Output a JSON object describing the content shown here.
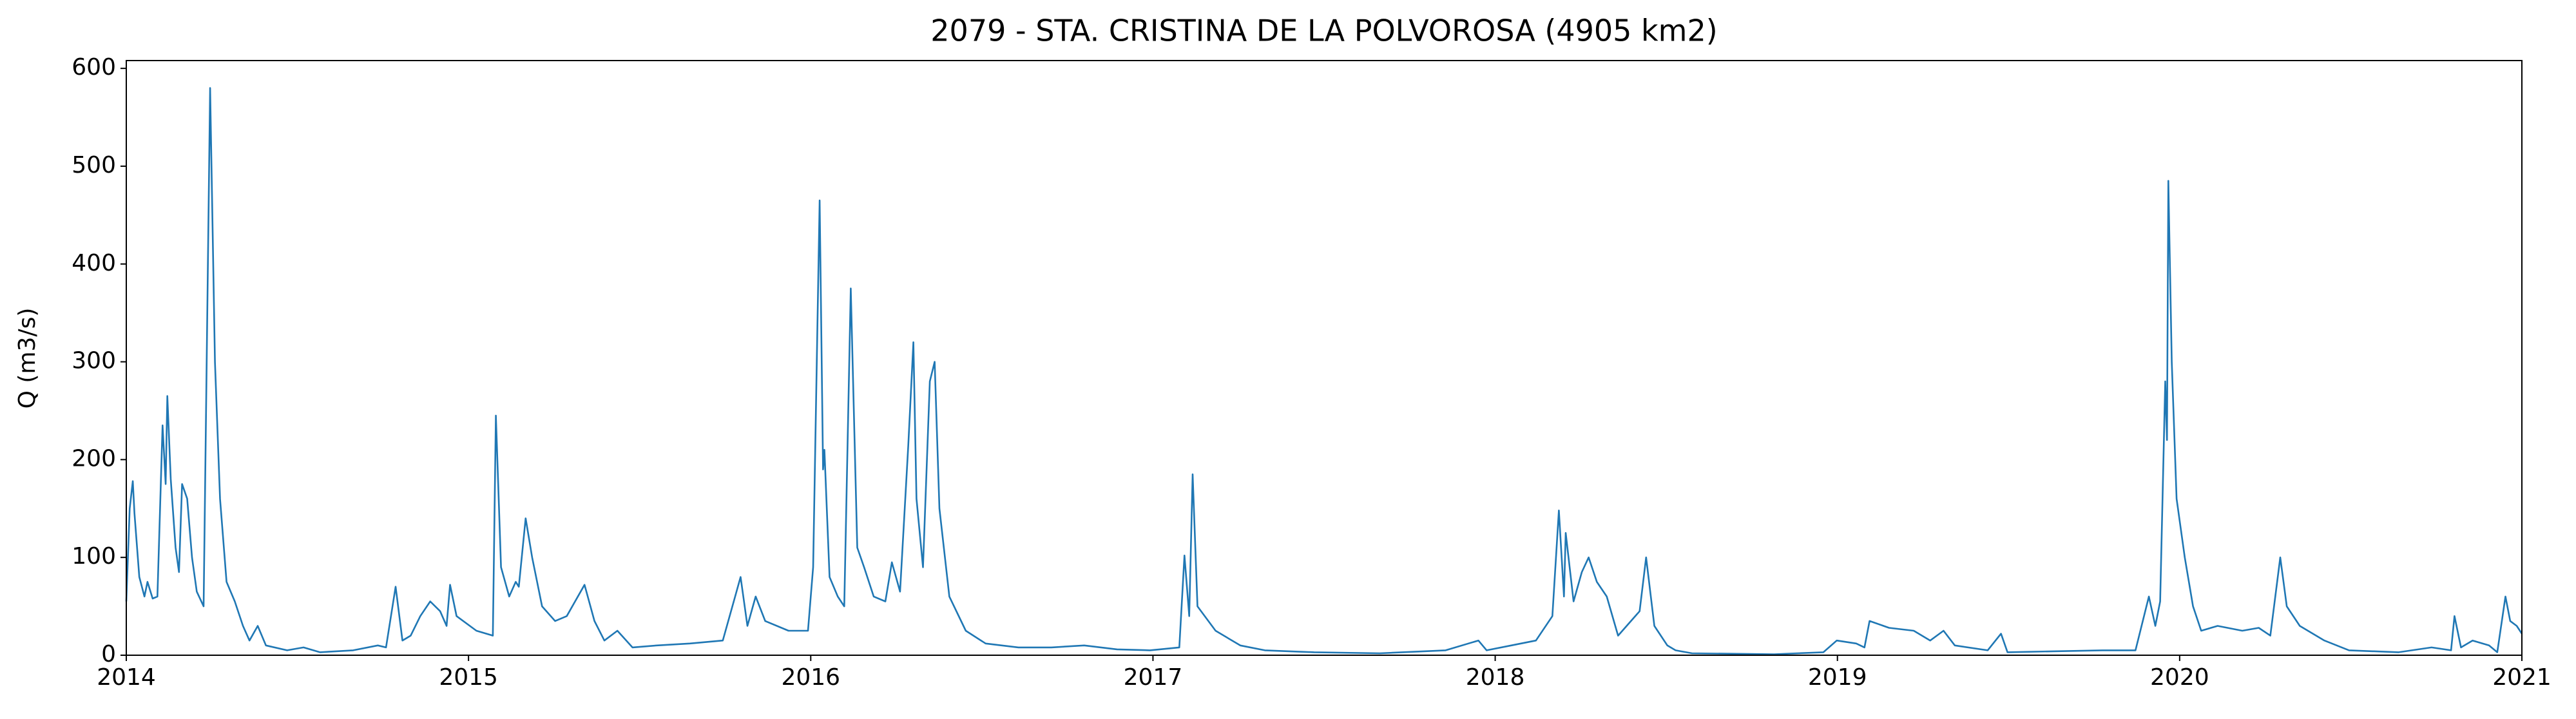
{
  "chart_data": {
    "type": "line",
    "title": "2079 - STA. CRISTINA DE LA POLVOROSA (4905 km2)",
    "y_label": "Q (m3/s)",
    "xlim": [
      2014,
      2021
    ],
    "xticks": [
      2014,
      2015,
      2016,
      2017,
      2018,
      2019,
      2020,
      2021
    ],
    "ylim": [
      0,
      608
    ],
    "yticks": [
      0,
      100,
      200,
      300,
      400,
      500,
      600
    ],
    "series": [
      {
        "color": "#1f77b4",
        "x": [
          2014.0,
          2014.01,
          2014.019,
          2014.024,
          2014.038,
          2014.053,
          2014.062,
          2014.077,
          2014.091,
          2014.106,
          2014.115,
          2014.12,
          2014.13,
          2014.144,
          2014.154,
          2014.163,
          2014.178,
          2014.192,
          2014.206,
          2014.226,
          2014.245,
          2014.259,
          2014.274,
          2014.293,
          2014.317,
          2014.341,
          2014.36,
          2014.384,
          2014.408,
          2014.47,
          2014.518,
          2014.566,
          2014.663,
          2014.735,
          2014.759,
          2014.787,
          2014.807,
          2014.831,
          2014.859,
          2014.888,
          2014.917,
          2014.936,
          2014.946,
          2014.965,
          2015.023,
          2015.071,
          2015.08,
          2015.095,
          2015.119,
          2015.138,
          2015.147,
          2015.167,
          2015.186,
          2015.215,
          2015.253,
          2015.287,
          2015.339,
          2015.368,
          2015.397,
          2015.435,
          2015.479,
          2015.551,
          2015.647,
          2015.743,
          2015.795,
          2015.815,
          2015.839,
          2015.867,
          2015.935,
          2015.992,
          2016.007,
          2016.026,
          2016.036,
          2016.04,
          2016.055,
          2016.079,
          2016.098,
          2016.117,
          2016.136,
          2016.156,
          2016.184,
          2016.218,
          2016.237,
          2016.261,
          2016.285,
          2016.3,
          2016.309,
          2016.328,
          2016.348,
          2016.362,
          2016.376,
          2016.405,
          2016.453,
          2016.511,
          2016.607,
          2016.703,
          2016.799,
          2016.895,
          2016.991,
          2017.077,
          2017.092,
          2017.106,
          2017.116,
          2017.13,
          2017.183,
          2017.255,
          2017.327,
          2017.471,
          2017.663,
          2017.855,
          2017.951,
          2017.975,
          2018.047,
          2018.119,
          2018.167,
          2018.186,
          2018.201,
          2018.206,
          2018.229,
          2018.253,
          2018.273,
          2018.297,
          2018.326,
          2018.359,
          2018.422,
          2018.441,
          2018.465,
          2018.503,
          2018.527,
          2018.575,
          2018.815,
          2018.959,
          2018.998,
          2019.055,
          2019.079,
          2019.094,
          2019.151,
          2019.223,
          2019.271,
          2019.31,
          2019.343,
          2019.439,
          2019.478,
          2019.497,
          2019.631,
          2019.775,
          2019.871,
          2019.91,
          2019.929,
          2019.943,
          2019.958,
          2019.963,
          2019.967,
          2019.977,
          2019.991,
          2020.015,
          2020.039,
          2020.063,
          2020.111,
          2020.183,
          2020.231,
          2020.265,
          2020.294,
          2020.313,
          2020.351,
          2020.423,
          2020.495,
          2020.64,
          2020.736,
          2020.793,
          2020.803,
          2020.822,
          2020.856,
          2020.904,
          2020.928,
          2020.952,
          2020.966,
          2020.985,
          2021.0
        ],
        "values": [
          55,
          150,
          178,
          145,
          80,
          60,
          75,
          58,
          60,
          235,
          175,
          265,
          180,
          110,
          85,
          175,
          160,
          100,
          65,
          50,
          580,
          300,
          160,
          75,
          55,
          30,
          15,
          30,
          10,
          5,
          8,
          3,
          5,
          10,
          8,
          70,
          15,
          20,
          40,
          55,
          45,
          30,
          72,
          40,
          25,
          20,
          245,
          90,
          60,
          75,
          70,
          140,
          100,
          50,
          35,
          40,
          72,
          35,
          15,
          25,
          8,
          10,
          12,
          15,
          80,
          30,
          60,
          35,
          25,
          25,
          90,
          465,
          190,
          210,
          80,
          60,
          50,
          375,
          110,
          90,
          60,
          55,
          95,
          65,
          215,
          320,
          160,
          90,
          280,
          300,
          150,
          60,
          25,
          12,
          8,
          8,
          10,
          6,
          5,
          8,
          102,
          40,
          185,
          50,
          25,
          10,
          5,
          3,
          2,
          5,
          15,
          5,
          10,
          15,
          40,
          148,
          60,
          125,
          55,
          85,
          100,
          75,
          60,
          20,
          45,
          100,
          30,
          10,
          5,
          2,
          1,
          3,
          15,
          12,
          8,
          35,
          28,
          25,
          15,
          25,
          10,
          5,
          22,
          3,
          4,
          5,
          5,
          60,
          30,
          55,
          280,
          220,
          485,
          300,
          160,
          100,
          50,
          25,
          30,
          25,
          28,
          20,
          100,
          50,
          30,
          15,
          5,
          3,
          8,
          5,
          40,
          8,
          15,
          10,
          3,
          60,
          35,
          30,
          22
        ]
      }
    ]
  }
}
